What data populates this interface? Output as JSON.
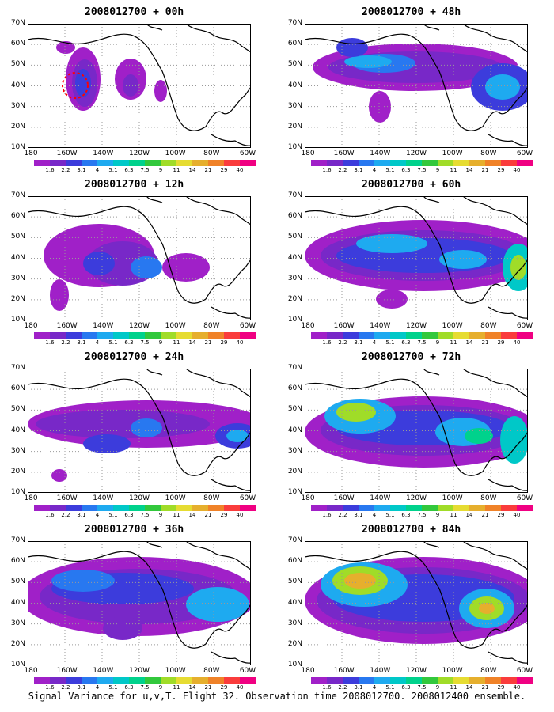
{
  "panels": [
    {
      "title": "2008012700 + 00h"
    },
    {
      "title": "2008012700 + 48h"
    },
    {
      "title": "2008012700 + 12h"
    },
    {
      "title": "2008012700 + 60h"
    },
    {
      "title": "2008012700 + 24h"
    },
    {
      "title": "2008012700 + 72h"
    },
    {
      "title": "2008012700 + 36h"
    },
    {
      "title": "2008012700 + 84h"
    }
  ],
  "axes": {
    "lat_labels": [
      "70N",
      "60N",
      "50N",
      "40N",
      "30N",
      "20N",
      "10N"
    ],
    "lon_labels": [
      "180",
      "160W",
      "140W",
      "120W",
      "100W",
      "80W",
      "60W"
    ]
  },
  "colorbar": {
    "labels": [
      "1.6",
      "2.2",
      "3.1",
      "4",
      "5.1",
      "6.3",
      "7.5",
      "9",
      "11",
      "14",
      "21",
      "29",
      "40"
    ],
    "colors": [
      "#a020c8",
      "#7828c8",
      "#3c3cdc",
      "#2878f0",
      "#1eaaf0",
      "#00c8c8",
      "#00d28c",
      "#32c83c",
      "#a0dc28",
      "#e6dc32",
      "#e6af2d",
      "#f08228",
      "#fa3c3c",
      "#f00082"
    ]
  },
  "caption": "Signal Variance for u,v,T. Flight 32. Observation time 2008012700. 2008012400 ensemble."
}
